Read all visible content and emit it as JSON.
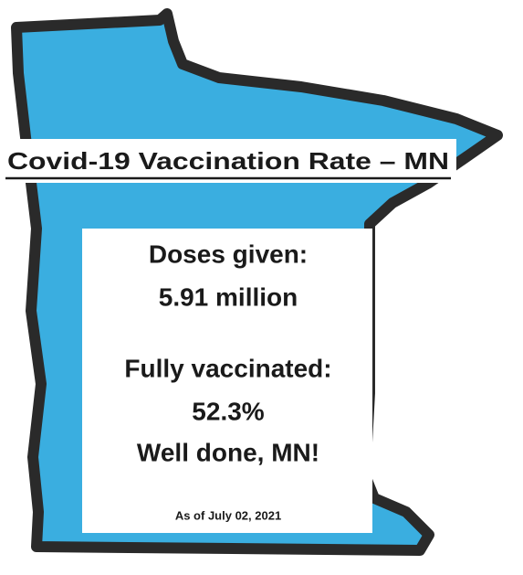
{
  "header": {
    "title": "Covid-19 Vaccination Rate – MN"
  },
  "stats": {
    "doses_label": "Doses given:",
    "doses_value": "5.91 million",
    "vaccinated_label": "Fully vaccinated:",
    "vaccinated_value": "52.3%",
    "message": "Well done, MN!"
  },
  "footer": {
    "date": "As of July 02, 2021"
  }
}
